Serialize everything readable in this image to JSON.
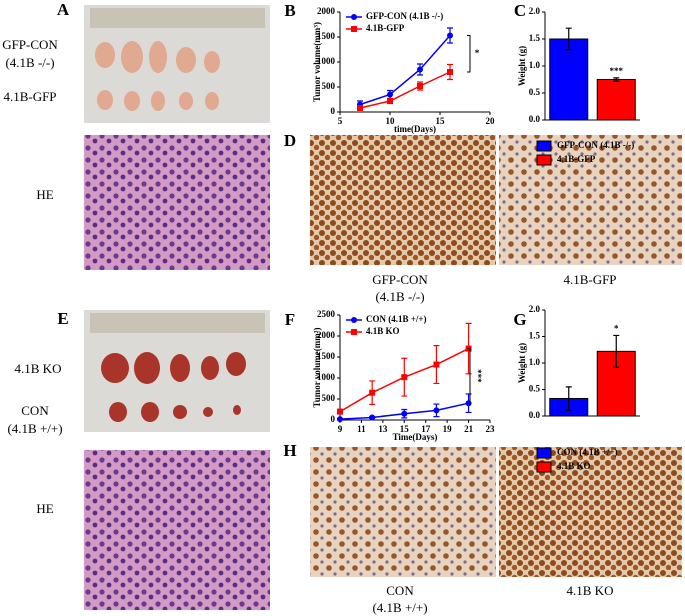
{
  "panel_a": {
    "label": "A",
    "rows": [
      [
        "GFP-CON",
        "(4.1B -/-)"
      ],
      [
        "4.1B-GFP"
      ]
    ],
    "stain": "HE"
  },
  "panel_d": {
    "label": "D",
    "captions": [
      [
        "GFP-CON",
        "(4.1B -/-)"
      ],
      [
        "4.1B-GFP"
      ]
    ]
  },
  "panel_e": {
    "label": "E",
    "rows": [
      [
        "4.1B KO"
      ],
      [
        "CON",
        "(4.1B +/+)"
      ]
    ],
    "stain": "HE"
  },
  "panel_h": {
    "label": "H",
    "captions": [
      [
        "CON",
        "(4.1B +/+)"
      ],
      [
        "4.1B KO"
      ]
    ]
  },
  "chart_data": [
    {
      "type": "line",
      "label": "B",
      "y_label": "Tumor volume(mm³)",
      "x_label": "time(Days)",
      "x": [
        7,
        10,
        13,
        16
      ],
      "xlim": [
        5,
        20
      ],
      "xticks": [
        5,
        10,
        15,
        20
      ],
      "ylim": [
        0,
        2000
      ],
      "yticks": [
        0,
        500,
        1000,
        1500,
        2000
      ],
      "series": [
        {
          "name": "GFP-CON (4.1B -/-)",
          "color": "#0000ff",
          "marker": "circle",
          "values": [
            150,
            350,
            850,
            1530
          ],
          "errors": [
            70,
            80,
            110,
            150
          ]
        },
        {
          "name": "4.1B-GFP",
          "color": "#ff0000",
          "marker": "square",
          "values": [
            80,
            220,
            520,
            800
          ],
          "errors": [
            40,
            50,
            80,
            150
          ]
        }
      ],
      "annotations": [
        {
          "text": "*"
        }
      ]
    },
    {
      "type": "bar",
      "label": "C",
      "y_label": "Weight (g)",
      "ylim": [
        0,
        2
      ],
      "yticks": [
        {
          "value": 0,
          "label": "0.0"
        },
        0.5,
        {
          "value": 1,
          "label": "1.0"
        },
        1.5,
        {
          "value": 2,
          "label": "2.0"
        }
      ],
      "series": [
        {
          "name": "GFP-CON (4.1B -/-)",
          "color": "#0000ff",
          "values": [
            1.5
          ],
          "errors": [
            0.2
          ]
        },
        {
          "name": "4.1B-GFP",
          "color": "#ff0000",
          "values": [
            0.75
          ],
          "errors": [
            0.03
          ]
        }
      ],
      "annotations": [
        {
          "text": "***"
        }
      ]
    },
    {
      "type": "line",
      "label": "F",
      "y_label": "Tumor volume(mm³)",
      "x_label": "Time(Days)",
      "x": [
        9,
        12,
        15,
        18,
        21
      ],
      "xlim": [
        9,
        23
      ],
      "xticks": [
        9,
        11,
        13,
        15,
        17,
        19,
        21,
        23
      ],
      "ylim": [
        0,
        2500
      ],
      "yticks": [
        0,
        500,
        1000,
        1500,
        2000,
        2500
      ],
      "series": [
        {
          "name": "CON (4.1B +/+)",
          "color": "#0000ff",
          "marker": "circle",
          "values": [
            20,
            60,
            150,
            230,
            400
          ],
          "errors": [
            10,
            20,
            100,
            150,
            220
          ]
        },
        {
          "name": "4.1B KO",
          "color": "#ff0000",
          "marker": "square",
          "values": [
            200,
            650,
            1020,
            1320,
            1700
          ],
          "errors": [
            50,
            280,
            450,
            450,
            600
          ]
        }
      ],
      "annotations": [
        {
          "text": "***"
        }
      ]
    },
    {
      "type": "bar",
      "label": "G",
      "y_label": "Weight (g)",
      "ylim": [
        0,
        2
      ],
      "yticks": [
        {
          "value": 0,
          "label": "0.0"
        },
        0.5,
        {
          "value": 1,
          "label": "1.0"
        },
        1.5,
        {
          "value": 2,
          "label": "2.0"
        }
      ],
      "series": [
        {
          "name": "CON (4.1B +/+)",
          "color": "#0000ff",
          "values": [
            0.33
          ],
          "errors": [
            0.22
          ]
        },
        {
          "name": "4.1B KO",
          "color": "#ff0000",
          "values": [
            1.22
          ],
          "errors": [
            0.3
          ]
        }
      ],
      "annotations": [
        {
          "text": "*"
        }
      ]
    }
  ]
}
